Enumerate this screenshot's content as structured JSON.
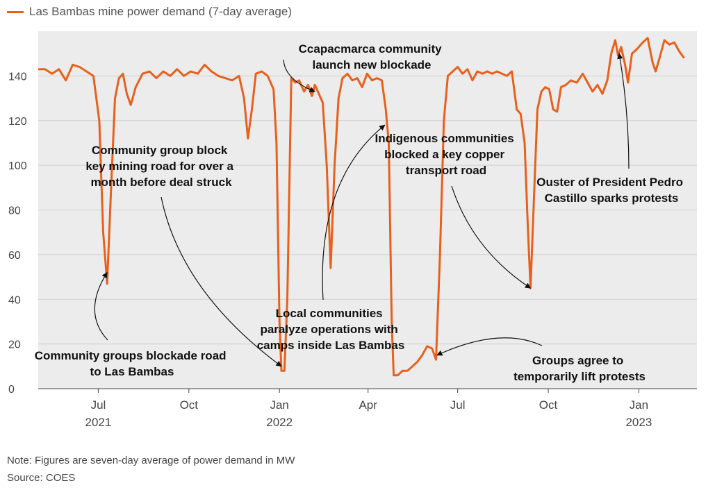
{
  "chart_data": {
    "type": "line",
    "title": "",
    "xlabel": "",
    "ylabel": "",
    "legend": {
      "label": "Las Bambas mine power demand (7-day average)",
      "placement": "top-left"
    },
    "ylim": [
      0,
      160
    ],
    "xlim": [
      "2021-05-01",
      "2023-03-01"
    ],
    "grid": "horizontal",
    "y_ticks": [
      "0",
      "20",
      "40",
      "60",
      "80",
      "100",
      "120",
      "140"
    ],
    "x_ticks": [
      {
        "date": "2021-07-01",
        "label": "Jul",
        "year": "2021"
      },
      {
        "date": "2021-10-01",
        "label": "Oct",
        "year": ""
      },
      {
        "date": "2022-01-01",
        "label": "Jan",
        "year": "2022"
      },
      {
        "date": "2022-04-01",
        "label": "Apr",
        "year": ""
      },
      {
        "date": "2022-07-01",
        "label": "Jul",
        "year": ""
      },
      {
        "date": "2022-10-01",
        "label": "Oct",
        "year": ""
      },
      {
        "date": "2023-01-01",
        "label": "Jan",
        "year": "2023"
      }
    ],
    "series": [
      {
        "name": "Las Bambas mine power demand (7-day average)",
        "color": "#e8601c",
        "points": [
          [
            "2021-05-01",
            143
          ],
          [
            "2021-05-08",
            143
          ],
          [
            "2021-05-15",
            141
          ],
          [
            "2021-05-22",
            143
          ],
          [
            "2021-05-29",
            138
          ],
          [
            "2021-06-05",
            145
          ],
          [
            "2021-06-12",
            144
          ],
          [
            "2021-06-19",
            142
          ],
          [
            "2021-06-26",
            140
          ],
          [
            "2021-07-02",
            120
          ],
          [
            "2021-07-06",
            70
          ],
          [
            "2021-07-10",
            47
          ],
          [
            "2021-07-14",
            90
          ],
          [
            "2021-07-18",
            130
          ],
          [
            "2021-07-22",
            139
          ],
          [
            "2021-07-26",
            141
          ],
          [
            "2021-07-30",
            132
          ],
          [
            "2021-08-03",
            127
          ],
          [
            "2021-08-08",
            135
          ],
          [
            "2021-08-15",
            141
          ],
          [
            "2021-08-22",
            142
          ],
          [
            "2021-08-29",
            139
          ],
          [
            "2021-09-05",
            142
          ],
          [
            "2021-09-12",
            140
          ],
          [
            "2021-09-19",
            143
          ],
          [
            "2021-09-26",
            140
          ],
          [
            "2021-10-03",
            142
          ],
          [
            "2021-10-10",
            141
          ],
          [
            "2021-10-17",
            145
          ],
          [
            "2021-10-24",
            142
          ],
          [
            "2021-10-31",
            140
          ],
          [
            "2021-11-07",
            139
          ],
          [
            "2021-11-14",
            138
          ],
          [
            "2021-11-21",
            140
          ],
          [
            "2021-11-26",
            130
          ],
          [
            "2021-11-30",
            112
          ],
          [
            "2021-12-04",
            125
          ],
          [
            "2021-12-08",
            141
          ],
          [
            "2021-12-14",
            142
          ],
          [
            "2021-12-20",
            140
          ],
          [
            "2021-12-26",
            134
          ],
          [
            "2021-12-29",
            110
          ],
          [
            "2022-01-01",
            30
          ],
          [
            "2022-01-03",
            8
          ],
          [
            "2022-01-06",
            8
          ],
          [
            "2022-01-09",
            40
          ],
          [
            "2022-01-13",
            139
          ],
          [
            "2022-01-17",
            137
          ],
          [
            "2022-01-21",
            138
          ],
          [
            "2022-01-26",
            133
          ],
          [
            "2022-01-30",
            136
          ],
          [
            "2022-02-03",
            131
          ],
          [
            "2022-02-06",
            136
          ],
          [
            "2022-02-09",
            133
          ],
          [
            "2022-02-14",
            128
          ],
          [
            "2022-02-18",
            100
          ],
          [
            "2022-02-22",
            54
          ],
          [
            "2022-02-26",
            100
          ],
          [
            "2022-03-02",
            130
          ],
          [
            "2022-03-06",
            139
          ],
          [
            "2022-03-11",
            141
          ],
          [
            "2022-03-16",
            138
          ],
          [
            "2022-03-21",
            139
          ],
          [
            "2022-03-26",
            135
          ],
          [
            "2022-03-31",
            141
          ],
          [
            "2022-04-05",
            138
          ],
          [
            "2022-04-10",
            139
          ],
          [
            "2022-04-15",
            138
          ],
          [
            "2022-04-19",
            125
          ],
          [
            "2022-04-22",
            110
          ],
          [
            "2022-04-25",
            30
          ],
          [
            "2022-04-27",
            6
          ],
          [
            "2022-05-01",
            6
          ],
          [
            "2022-05-06",
            8
          ],
          [
            "2022-05-11",
            8
          ],
          [
            "2022-05-16",
            10
          ],
          [
            "2022-05-21",
            12
          ],
          [
            "2022-05-26",
            15
          ],
          [
            "2022-05-31",
            19
          ],
          [
            "2022-06-05",
            18
          ],
          [
            "2022-06-09",
            13
          ],
          [
            "2022-06-13",
            60
          ],
          [
            "2022-06-17",
            120
          ],
          [
            "2022-06-21",
            140
          ],
          [
            "2022-06-26",
            142
          ],
          [
            "2022-07-01",
            144
          ],
          [
            "2022-07-06",
            141
          ],
          [
            "2022-07-11",
            143
          ],
          [
            "2022-07-16",
            138
          ],
          [
            "2022-07-21",
            142
          ],
          [
            "2022-07-26",
            141
          ],
          [
            "2022-07-31",
            142
          ],
          [
            "2022-08-05",
            141
          ],
          [
            "2022-08-10",
            142
          ],
          [
            "2022-08-15",
            141
          ],
          [
            "2022-08-20",
            140
          ],
          [
            "2022-08-25",
            142
          ],
          [
            "2022-08-30",
            125
          ],
          [
            "2022-09-03",
            123
          ],
          [
            "2022-09-07",
            110
          ],
          [
            "2022-09-10",
            75
          ],
          [
            "2022-09-13",
            45
          ],
          [
            "2022-09-16",
            80
          ],
          [
            "2022-09-20",
            125
          ],
          [
            "2022-09-24",
            133
          ],
          [
            "2022-09-28",
            135
          ],
          [
            "2022-10-02",
            134
          ],
          [
            "2022-10-06",
            125
          ],
          [
            "2022-10-10",
            124
          ],
          [
            "2022-10-14",
            135
          ],
          [
            "2022-10-19",
            136
          ],
          [
            "2022-10-24",
            138
          ],
          [
            "2022-10-30",
            137
          ],
          [
            "2022-11-05",
            141
          ],
          [
            "2022-11-10",
            137
          ],
          [
            "2022-11-15",
            133
          ],
          [
            "2022-11-20",
            136
          ],
          [
            "2022-11-25",
            132
          ],
          [
            "2022-11-30",
            138
          ],
          [
            "2022-12-04",
            150
          ],
          [
            "2022-12-08",
            156
          ],
          [
            "2022-12-11",
            149
          ],
          [
            "2022-12-14",
            153
          ],
          [
            "2022-12-18",
            145
          ],
          [
            "2022-12-21",
            137
          ],
          [
            "2022-12-25",
            150
          ],
          [
            "2022-12-30",
            152
          ],
          [
            "2023-01-05",
            155
          ],
          [
            "2023-01-10",
            157
          ],
          [
            "2023-01-15",
            146
          ],
          [
            "2023-01-18",
            142
          ],
          [
            "2023-01-22",
            148
          ],
          [
            "2023-01-27",
            156
          ],
          [
            "2023-02-01",
            154
          ],
          [
            "2023-02-06",
            155
          ],
          [
            "2023-02-11",
            151
          ],
          [
            "2023-02-16",
            148
          ]
        ]
      }
    ],
    "annotations": [
      {
        "lines": [
          "Community groups blockade road",
          "to Las Bambas"
        ],
        "target": [
          "2021-07-10",
          52
        ]
      },
      {
        "lines": [
          "Community group block",
          "key mining road for over a",
          "month before deal struck"
        ],
        "target": [
          "2022-01-03",
          10
        ]
      },
      {
        "lines": [
          "Ccapacmarca community",
          "launch new blockade"
        ],
        "target": [
          "2022-02-06",
          133
        ]
      },
      {
        "lines": [
          "Local communities",
          "paralyze operations with",
          "camps inside Las Bambas"
        ],
        "target": [
          "2022-04-18",
          118
        ]
      },
      {
        "lines": [
          "Indigenous communities",
          "blocked a key copper",
          "transport road"
        ],
        "target": [
          "2022-09-13",
          45
        ]
      },
      {
        "lines": [
          "Ouster of President Pedro",
          "Castillo sparks protests"
        ],
        "target": [
          "2022-12-12",
          150
        ]
      },
      {
        "lines": [
          "Groups agree to",
          "temporarily lift protests"
        ],
        "target": [
          "2022-06-10",
          15
        ]
      }
    ]
  },
  "notes": {
    "note": "Note: Figures are seven-day average of power demand in MW",
    "source": "Source: COES"
  }
}
